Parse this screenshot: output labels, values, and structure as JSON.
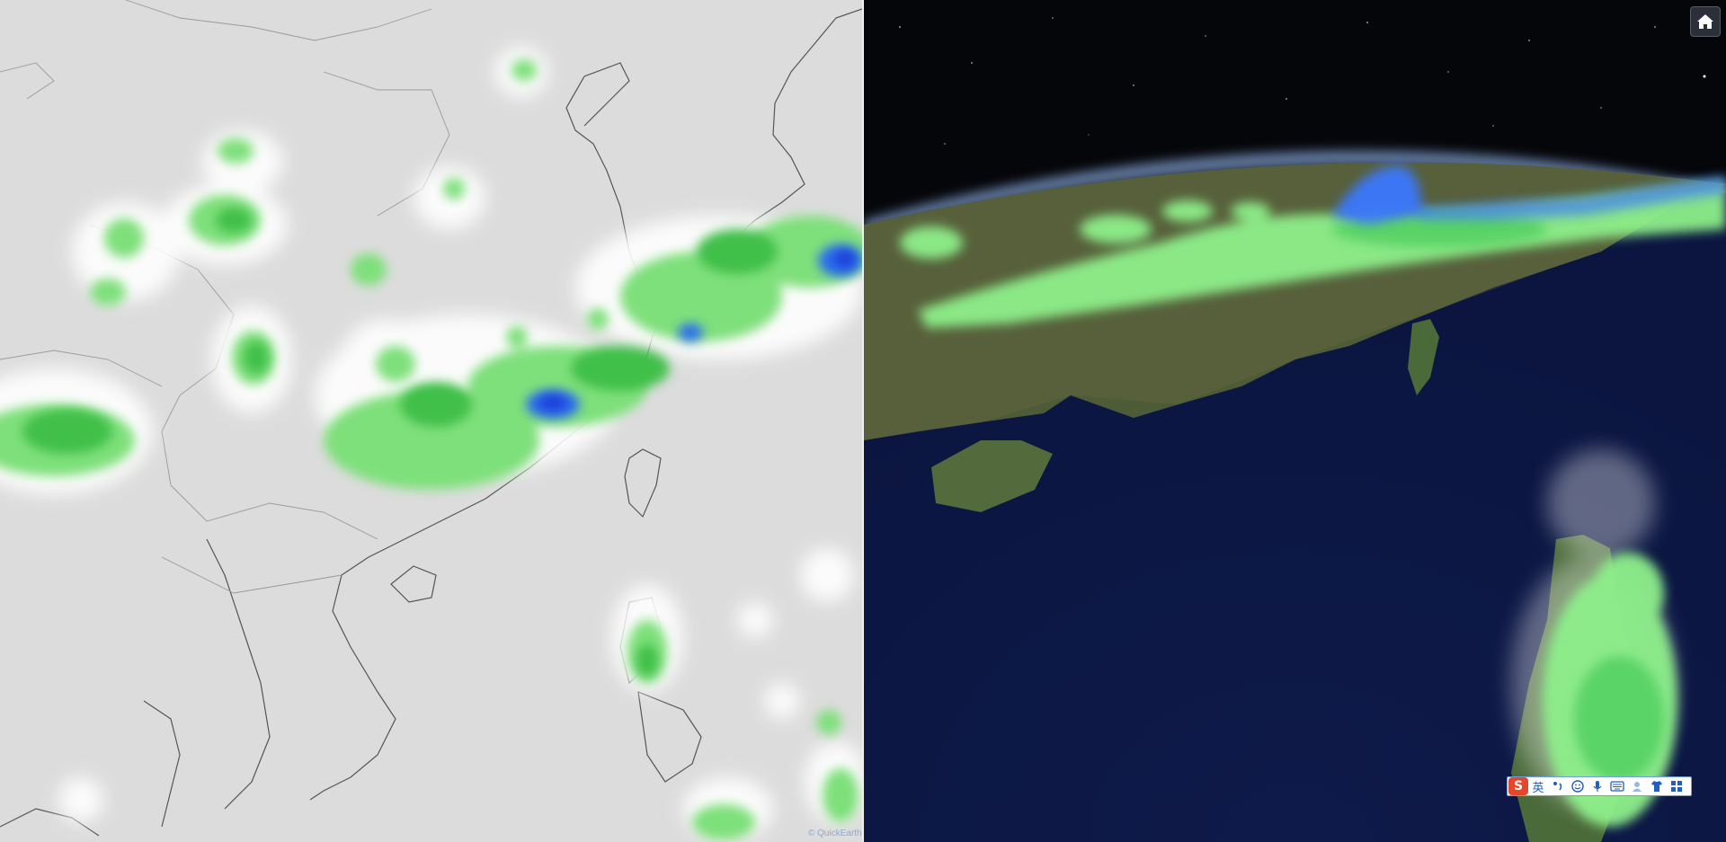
{
  "left_map": {
    "attribution": "© QuickEarth",
    "colors": {
      "land": "#dcdcdc",
      "coast": "#555555",
      "border": "#9a9a9a",
      "rain_light": "#7ee07a",
      "rain_mid": "#3fbf4a",
      "rain_heavy": "#2a6cf0"
    }
  },
  "right_globe": {
    "colors": {
      "space": "#05060a",
      "ocean": "#0e1a4a",
      "land": "#4b5a35",
      "rain_light": "#8ef08a",
      "rain_heavy": "#3a78ff"
    }
  },
  "home_button": {
    "icon": "home-icon"
  },
  "ime_toolbar": {
    "logo": "S",
    "lang_label": "英",
    "items": [
      "punctuation-icon",
      "emoji-icon",
      "microphone-icon",
      "keyboard-icon",
      "skin-icon",
      "shirt-icon",
      "grid-icon"
    ]
  }
}
